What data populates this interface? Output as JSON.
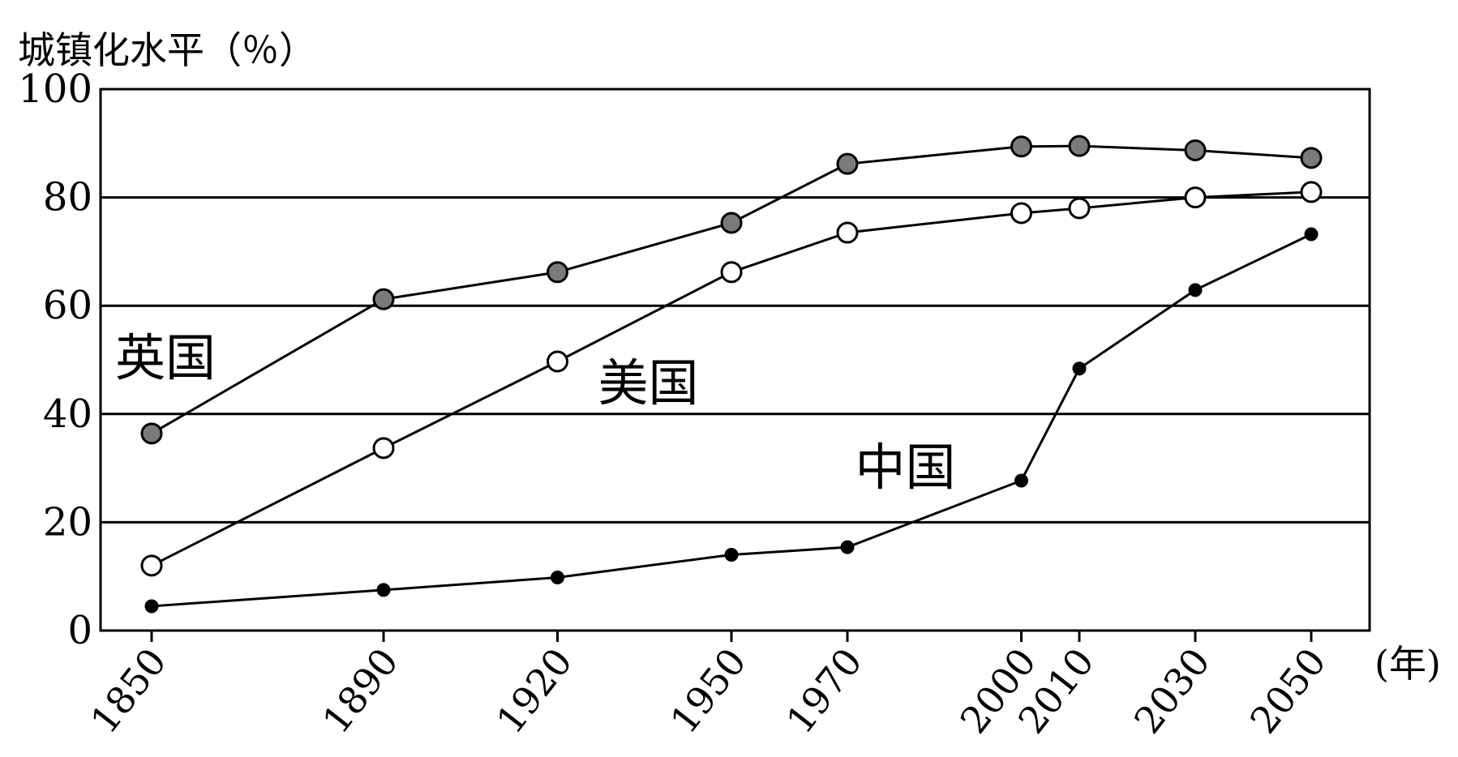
{
  "chart_data": {
    "type": "line",
    "ylabel": "城镇化水平（％）",
    "x_unit": "(年)",
    "x": [
      1850,
      1890,
      1920,
      1950,
      1970,
      2000,
      2010,
      2030,
      2050
    ],
    "x_tick_labels": [
      "1850",
      "1890",
      "1920",
      "1950",
      "1970",
      "2000",
      "2010",
      "2030",
      "2050"
    ],
    "ylim": [
      0,
      100
    ],
    "y_ticks": [
      0,
      20,
      40,
      60,
      80,
      100
    ],
    "y_tick_labels": [
      "0",
      "20",
      "40",
      "60",
      "80",
      "100"
    ],
    "grid": "horizontal",
    "series": [
      {
        "name": "英国",
        "marker": "gray-filled-circle",
        "color": "#7a7a7a",
        "values": [
          36.4,
          61.2,
          66.2,
          75.3,
          86.2,
          89.4,
          89.5,
          88.7,
          87.3
        ],
        "label_anchor_x": 1850
      },
      {
        "name": "美国",
        "marker": "open-circle",
        "color": "#ffffff",
        "values": [
          12.0,
          33.7,
          49.7,
          66.2,
          73.5,
          77.1,
          78.0,
          80.0,
          81.0
        ],
        "label_anchor_x": 1920
      },
      {
        "name": "中国",
        "marker": "black-dot",
        "color": "#000000",
        "values": [
          4.5,
          7.5,
          9.8,
          14.0,
          15.4,
          27.7,
          48.4,
          62.9,
          73.2
        ],
        "label_anchor_x": 2000
      }
    ]
  }
}
